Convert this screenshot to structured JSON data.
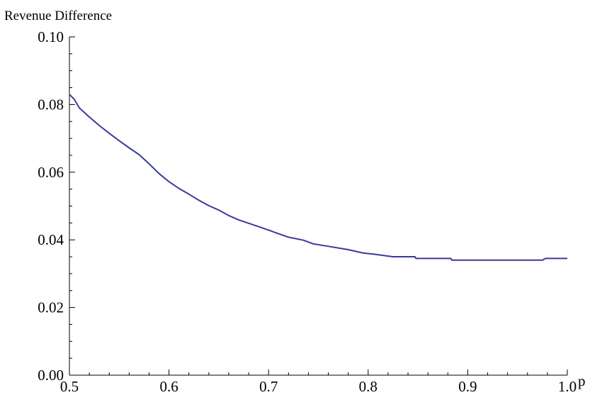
{
  "chart_data": {
    "type": "line",
    "title": "",
    "ylabel": "Revenue Difference",
    "xlabel": "p",
    "xlim": [
      0.5,
      1.0
    ],
    "ylim": [
      0.0,
      0.1
    ],
    "x_ticks": [
      "0.5",
      "0.6",
      "0.7",
      "0.8",
      "0.9",
      "1.0"
    ],
    "y_ticks": [
      "0.00",
      "0.02",
      "0.04",
      "0.06",
      "0.08",
      "0.10"
    ],
    "x_tick_values": [
      0.5,
      0.6,
      0.7,
      0.8,
      0.9,
      1.0
    ],
    "y_tick_values": [
      0.0,
      0.02,
      0.04,
      0.06,
      0.08,
      0.1
    ],
    "grid": false,
    "legend": "none",
    "series": [
      {
        "color": "#3a3a9a",
        "x": [
          0.5,
          0.505,
          0.51,
          0.52,
          0.53,
          0.54,
          0.55,
          0.56,
          0.57,
          0.58,
          0.59,
          0.6,
          0.61,
          0.62,
          0.63,
          0.64,
          0.65,
          0.66,
          0.67,
          0.68,
          0.69,
          0.7,
          0.71,
          0.72,
          0.735,
          0.745,
          0.76,
          0.78,
          0.795,
          0.805,
          0.825,
          0.847,
          0.848,
          0.883,
          0.884,
          0.975,
          0.978,
          1.0
        ],
        "y": [
          0.083,
          0.0815,
          0.079,
          0.0763,
          0.0738,
          0.0715,
          0.0693,
          0.0672,
          0.0652,
          0.0625,
          0.0596,
          0.0572,
          0.0552,
          0.0535,
          0.0517,
          0.0501,
          0.0488,
          0.0472,
          0.0459,
          0.0449,
          0.0439,
          0.0429,
          0.0418,
          0.0408,
          0.0399,
          0.0388,
          0.0381,
          0.0371,
          0.0361,
          0.0358,
          0.035,
          0.035,
          0.0345,
          0.0345,
          0.034,
          0.034,
          0.0345,
          0.0345
        ]
      }
    ]
  }
}
